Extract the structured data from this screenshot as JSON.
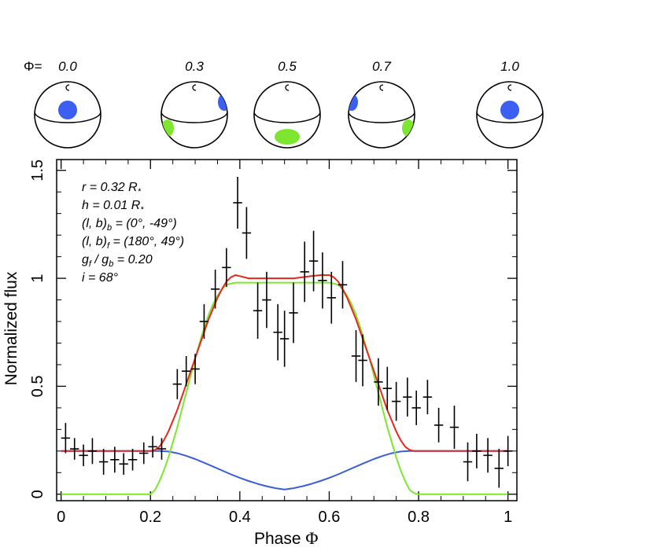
{
  "chart_data": {
    "type": "line",
    "xlabel": "Phase",
    "xlabel_symbol": "Φ",
    "ylabel": "Normalized flux",
    "xlim": [
      -0.01,
      1.02
    ],
    "ylim": [
      -0.03,
      1.55
    ],
    "x_ticks": [
      0,
      0.2,
      0.4,
      0.6,
      0.8,
      1
    ],
    "x_tick_labels": [
      "0",
      "0.2",
      "0.4",
      "0.6",
      "0.8",
      "1"
    ],
    "y_ticks": [
      0,
      0.5,
      1,
      1.5
    ],
    "y_tick_labels": [
      "0",
      "0.5",
      "1",
      "1.5"
    ],
    "annotations": [
      "r = 0.32 R*",
      "h = 0.01 R*",
      "(l, b)b = (0°, -49°)",
      "(l, b)f = (180°, 49°)",
      "gf / gb = 0.20",
      "i = 68°"
    ],
    "phase_panel": {
      "label": "Φ=",
      "phases": [
        "0.0",
        "0.3",
        "0.5",
        "0.7",
        "1.0"
      ],
      "spot_colors": {
        "back": "#3b5ff0",
        "front": "#7ee62e"
      }
    },
    "series": [
      {
        "name": "total model",
        "color": "#e8281e",
        "x": [
          0,
          0.2,
          0.21,
          0.22,
          0.23,
          0.24,
          0.25,
          0.26,
          0.27,
          0.28,
          0.29,
          0.3,
          0.31,
          0.32,
          0.33,
          0.34,
          0.35,
          0.36,
          0.37,
          0.38,
          0.39,
          0.4,
          0.42,
          0.44,
          0.46,
          0.48,
          0.5,
          0.52,
          0.54,
          0.56,
          0.58,
          0.6,
          0.61,
          0.62,
          0.63,
          0.64,
          0.65,
          0.66,
          0.67,
          0.68,
          0.69,
          0.7,
          0.71,
          0.72,
          0.73,
          0.74,
          0.75,
          0.76,
          0.77,
          0.78,
          0.79,
          0.8,
          1
        ],
        "y": [
          0.2,
          0.2,
          0.205,
          0.22,
          0.25,
          0.29,
          0.34,
          0.39,
          0.45,
          0.51,
          0.57,
          0.63,
          0.69,
          0.75,
          0.81,
          0.86,
          0.91,
          0.95,
          0.985,
          1.005,
          1.015,
          1.01,
          1.0,
          1.0,
          1.0,
          1.0,
          1.0,
          1.0,
          1.005,
          1.01,
          1.015,
          1.015,
          1.005,
          0.985,
          0.95,
          0.91,
          0.86,
          0.81,
          0.75,
          0.69,
          0.63,
          0.57,
          0.51,
          0.45,
          0.39,
          0.34,
          0.29,
          0.25,
          0.22,
          0.205,
          0.2,
          0.2,
          0.2
        ]
      },
      {
        "name": "front spot",
        "color": "#7ee62e",
        "x": [
          0,
          0.2,
          0.21,
          0.22,
          0.23,
          0.24,
          0.25,
          0.26,
          0.27,
          0.28,
          0.29,
          0.3,
          0.31,
          0.32,
          0.33,
          0.34,
          0.35,
          0.36,
          0.37,
          0.38,
          0.39,
          0.4,
          0.45,
          0.5,
          0.55,
          0.6,
          0.61,
          0.62,
          0.63,
          0.64,
          0.65,
          0.66,
          0.67,
          0.68,
          0.69,
          0.7,
          0.71,
          0.72,
          0.73,
          0.74,
          0.75,
          0.76,
          0.77,
          0.78,
          0.79,
          0.8,
          1
        ],
        "y": [
          0,
          0,
          0.02,
          0.06,
          0.11,
          0.17,
          0.24,
          0.31,
          0.39,
          0.47,
          0.55,
          0.63,
          0.7,
          0.77,
          0.83,
          0.88,
          0.92,
          0.95,
          0.97,
          0.975,
          0.98,
          0.98,
          0.98,
          0.98,
          0.98,
          0.98,
          0.975,
          0.97,
          0.95,
          0.92,
          0.88,
          0.83,
          0.77,
          0.7,
          0.63,
          0.55,
          0.47,
          0.39,
          0.31,
          0.24,
          0.17,
          0.11,
          0.06,
          0.02,
          0.005,
          0,
          0
        ]
      },
      {
        "name": "back spot",
        "color": "#3a5ddb",
        "x": [
          0,
          0.2,
          0.22,
          0.24,
          0.26,
          0.28,
          0.3,
          0.32,
          0.34,
          0.36,
          0.38,
          0.4,
          0.42,
          0.44,
          0.46,
          0.48,
          0.5,
          0.52,
          0.54,
          0.56,
          0.58,
          0.6,
          0.62,
          0.64,
          0.66,
          0.68,
          0.7,
          0.72,
          0.74,
          0.76,
          0.78,
          0.8,
          1
        ],
        "y": [
          0.2,
          0.2,
          0.2,
          0.198,
          0.19,
          0.178,
          0.163,
          0.146,
          0.128,
          0.11,
          0.092,
          0.076,
          0.061,
          0.048,
          0.037,
          0.028,
          0.022,
          0.028,
          0.037,
          0.048,
          0.061,
          0.076,
          0.092,
          0.11,
          0.128,
          0.146,
          0.163,
          0.178,
          0.19,
          0.198,
          0.2,
          0.2,
          0.2
        ]
      }
    ],
    "observed": {
      "name": "data",
      "x": [
        0.01,
        0.03,
        0.05,
        0.07,
        0.095,
        0.12,
        0.14,
        0.16,
        0.185,
        0.205,
        0.225,
        0.26,
        0.28,
        0.3,
        0.32,
        0.345,
        0.37,
        0.395,
        0.415,
        0.44,
        0.46,
        0.485,
        0.5,
        0.52,
        0.545,
        0.565,
        0.585,
        0.605,
        0.63,
        0.66,
        0.675,
        0.71,
        0.73,
        0.75,
        0.775,
        0.795,
        0.82,
        0.845,
        0.88,
        0.91,
        0.93,
        0.955,
        0.98,
        1.0
      ],
      "y": [
        0.26,
        0.21,
        0.18,
        0.2,
        0.15,
        0.16,
        0.14,
        0.16,
        0.19,
        0.22,
        0.21,
        0.51,
        0.57,
        0.58,
        0.8,
        0.95,
        1.05,
        1.35,
        1.21,
        0.85,
        0.9,
        0.75,
        0.72,
        0.84,
        1.03,
        1.08,
        0.99,
        0.91,
        0.97,
        0.64,
        0.62,
        0.52,
        0.49,
        0.43,
        0.45,
        0.4,
        0.45,
        0.32,
        0.31,
        0.15,
        0.2,
        0.18,
        0.12,
        0.2
      ],
      "yerr": [
        0.07,
        0.05,
        0.05,
        0.06,
        0.06,
        0.06,
        0.05,
        0.05,
        0.05,
        0.05,
        0.05,
        0.07,
        0.07,
        0.07,
        0.08,
        0.09,
        0.09,
        0.12,
        0.12,
        0.13,
        0.13,
        0.13,
        0.13,
        0.14,
        0.14,
        0.14,
        0.13,
        0.12,
        0.11,
        0.12,
        0.12,
        0.11,
        0.1,
        0.09,
        0.09,
        0.08,
        0.08,
        0.08,
        0.1,
        0.09,
        0.08,
        0.08,
        0.09,
        0.07
      ],
      "xerr": 0.01
    }
  }
}
